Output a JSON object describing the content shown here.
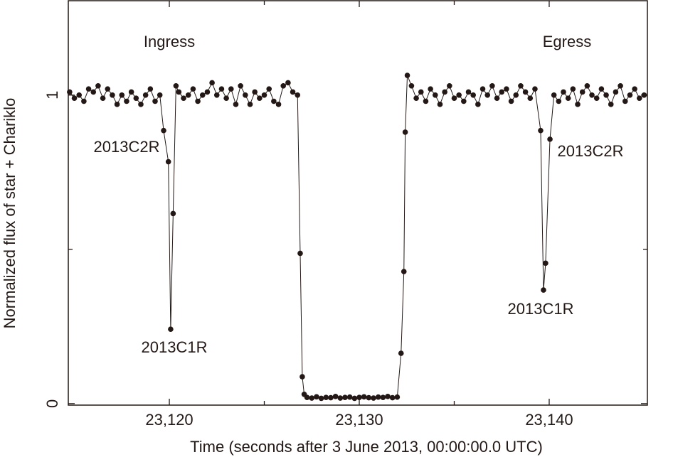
{
  "chart_data": {
    "type": "scatter-line",
    "xlabel": "Time (seconds after 3 June 2013, 00:00:00.0 UTC)",
    "ylabel": "Normalized flux of star + Chariklo",
    "annotations": [
      "Ingress",
      "Egress",
      "2013C2R",
      "2013C1R",
      "2013C1R",
      "2013C2R"
    ],
    "color": "#231815",
    "xlim": [
      23114.68,
      23145.17
    ],
    "ylim": [
      -0.005,
      1.306
    ],
    "xticks": [
      {
        "value": 23120,
        "label": "23,120"
      },
      {
        "value": 23130,
        "label": "23,130"
      },
      {
        "value": 23140,
        "label": "23,140"
      }
    ],
    "xticks_minor": [
      23125,
      23135
    ],
    "yticks": [
      0,
      1
    ],
    "yticks_minor": [
      0.5
    ],
    "x": [
      23114.75,
      23115,
      23115.25,
      23115.5,
      23115.75,
      23116,
      23116.25,
      23116.5,
      23116.75,
      23117,
      23117.25,
      23117.5,
      23117.75,
      23118,
      23118.25,
      23118.5,
      23118.75,
      23119,
      23119.25,
      23119.5,
      23119.7,
      23119.95,
      23120.07,
      23120.2,
      23120.35,
      23120.5,
      23120.75,
      23121,
      23121.25,
      23121.5,
      23121.75,
      23122,
      23122.25,
      23122.5,
      23122.75,
      23123,
      23123.25,
      23123.5,
      23123.75,
      23124,
      23124.25,
      23124.5,
      23124.75,
      23125,
      23125.25,
      23125.5,
      23125.75,
      23126,
      23126.25,
      23126.5,
      23126.75,
      23126.89,
      23127.0,
      23127.1,
      23127.25,
      23127.5,
      23127.75,
      23128,
      23128.25,
      23128.5,
      23128.75,
      23129,
      23129.25,
      23129.5,
      23129.75,
      23130,
      23130.25,
      23130.5,
      23130.75,
      23131,
      23131.25,
      23131.5,
      23131.75,
      23132,
      23132.2,
      23132.35,
      23132.42,
      23132.53,
      23132.75,
      23133,
      23133.25,
      23133.5,
      23133.75,
      23134,
      23134.25,
      23134.5,
      23134.75,
      23135,
      23135.25,
      23135.5,
      23135.75,
      23136,
      23136.25,
      23136.5,
      23136.75,
      23137,
      23137.25,
      23137.5,
      23137.75,
      23138,
      23138.25,
      23138.5,
      23138.75,
      23139,
      23139.25,
      23139.55,
      23139.7,
      23139.81,
      23140.04,
      23140.25,
      23140.5,
      23140.75,
      23141,
      23141.25,
      23141.5,
      23141.75,
      23142,
      23142.25,
      23142.5,
      23142.75,
      23143,
      23143.25,
      23143.5,
      23143.75,
      23144,
      23144.25,
      23144.5,
      23144.75,
      23145
    ],
    "values": [
      1.01,
      0.99,
      1.0,
      0.98,
      1.02,
      1.01,
      1.03,
      0.99,
      1.02,
      1.0,
      0.97,
      1.0,
      0.98,
      1.01,
      0.99,
      0.97,
      1.0,
      1.02,
      0.98,
      1.0,
      0.885,
      0.784,
      0.241,
      0.616,
      1.03,
      1.01,
      0.99,
      1.0,
      1.02,
      0.98,
      1.0,
      1.01,
      1.04,
      1.0,
      1.02,
      0.99,
      1.02,
      0.97,
      1.03,
      1.0,
      0.97,
      1.01,
      0.99,
      1.0,
      1.02,
      0.98,
      0.97,
      1.03,
      1.04,
      1.01,
      1.0,
      0.487,
      0.087,
      0.03,
      0.02,
      0.018,
      0.022,
      0.017,
      0.02,
      0.019,
      0.023,
      0.018,
      0.02,
      0.021,
      0.017,
      0.02,
      0.022,
      0.019,
      0.018,
      0.021,
      0.02,
      0.023,
      0.019,
      0.021,
      0.163,
      0.428,
      0.88,
      1.064,
      1.03,
      0.99,
      1.01,
      0.98,
      1.02,
      1.0,
      0.97,
      1.01,
      1.03,
      0.99,
      1.0,
      0.98,
      1.01,
      1.0,
      0.97,
      1.02,
      1.0,
      1.03,
      0.99,
      1.01,
      1.02,
      0.98,
      1.0,
      1.03,
      1.01,
      0.99,
      1.02,
      0.885,
      0.368,
      0.455,
      0.857,
      1.0,
      0.98,
      1.01,
      0.99,
      1.02,
      0.97,
      1.01,
      1.03,
      1.0,
      0.99,
      1.02,
      1.0,
      0.97,
      1.01,
      1.03,
      0.98,
      1.0,
      1.02,
      0.99,
      1.0
    ]
  }
}
